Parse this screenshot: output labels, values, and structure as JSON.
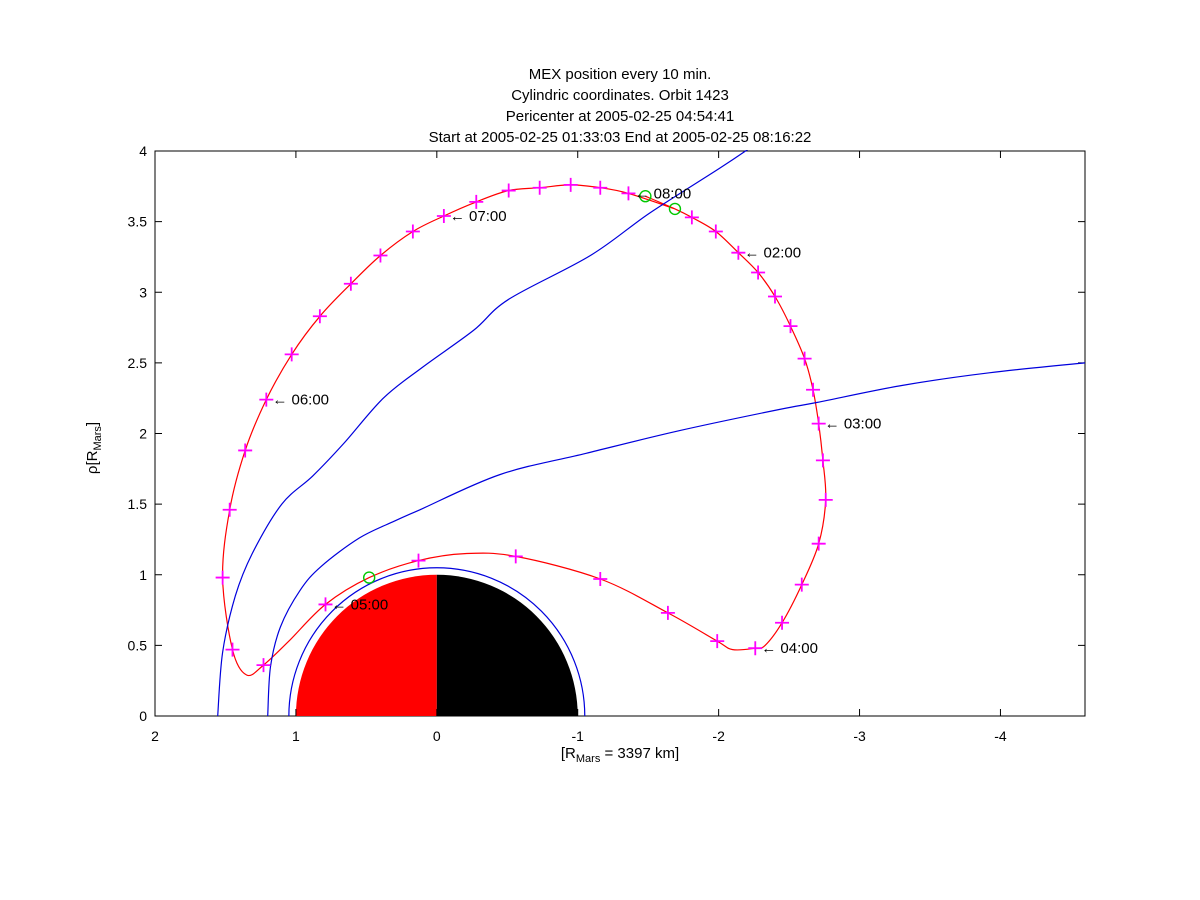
{
  "title": {
    "lines": [
      "MEX position every 10 min.",
      "Cylindric coordinates. Orbit 1423",
      "Pericenter at 2005-02-25 04:54:41",
      "Start at 2005-02-25 01:33:03 End at 2005-02-25 08:16:22"
    ]
  },
  "axes": {
    "xlabel": {
      "pre": "[R",
      "sub": "Mars",
      "post": " = 3397 km]"
    },
    "ylabel": {
      "pre": "ρ[R",
      "sub": "Mars",
      "post": "]"
    },
    "xlim": [
      2,
      -4.6
    ],
    "ylim": [
      0,
      4
    ],
    "xticks": [
      "2",
      "1",
      "0",
      "-1",
      "-2",
      "-3",
      "-4"
    ],
    "xtick_values": [
      2,
      1,
      0,
      -1,
      -2,
      -3,
      -4
    ],
    "yticks": [
      "0",
      "0.5",
      "1",
      "1.5",
      "2",
      "2.5",
      "3",
      "3.5",
      "4"
    ],
    "ytick_values": [
      0,
      0.5,
      1,
      1.5,
      2,
      2.5,
      3,
      3.5,
      4
    ]
  },
  "chart_data": {
    "type": "line",
    "xlabel": "[R_Mars = 3397 km]",
    "ylabel": "rho [R_Mars]",
    "xlim": [
      2,
      -4.6
    ],
    "ylim": [
      0,
      4
    ],
    "annotation_arrow": "←",
    "series": [
      {
        "name": "mex-orbit",
        "color": "#ff0000",
        "marker": "+",
        "marker_color": "#ff00ff",
        "points": [
          [
            -1.48,
            3.68,
            0
          ],
          [
            -1.69,
            3.59,
            0
          ],
          [
            -1.81,
            3.53,
            1
          ],
          [
            -1.98,
            3.43,
            1
          ],
          [
            -2.14,
            3.28,
            1
          ],
          [
            -2.28,
            3.14,
            1
          ],
          [
            -2.4,
            2.97,
            1
          ],
          [
            -2.51,
            2.76,
            1
          ],
          [
            -2.61,
            2.53,
            1
          ],
          [
            -2.67,
            2.31,
            1
          ],
          [
            -2.71,
            2.07,
            1
          ],
          [
            -2.74,
            1.81,
            1
          ],
          [
            -2.76,
            1.53,
            1
          ],
          [
            -2.71,
            1.22,
            1
          ],
          [
            -2.59,
            0.93,
            1
          ],
          [
            -2.45,
            0.66,
            1
          ],
          [
            -2.33,
            0.5,
            0
          ],
          [
            -2.26,
            0.48,
            1
          ],
          [
            -2.1,
            0.47,
            0
          ],
          [
            -1.99,
            0.53,
            1
          ],
          [
            -1.64,
            0.73,
            1
          ],
          [
            -1.16,
            0.97,
            1
          ],
          [
            -0.56,
            1.13,
            1
          ],
          [
            -0.2,
            1.15,
            0
          ],
          [
            0.13,
            1.1,
            1
          ],
          [
            0.48,
            0.98,
            0
          ],
          [
            0.79,
            0.79,
            1
          ],
          [
            1.05,
            0.53,
            0
          ],
          [
            1.23,
            0.36,
            1
          ],
          [
            1.35,
            0.29,
            0
          ],
          [
            1.45,
            0.47,
            1
          ],
          [
            1.52,
            0.98,
            1
          ],
          [
            1.47,
            1.46,
            1
          ],
          [
            1.36,
            1.88,
            1
          ],
          [
            1.21,
            2.24,
            1
          ],
          [
            1.03,
            2.56,
            1
          ],
          [
            0.83,
            2.83,
            1
          ],
          [
            0.61,
            3.06,
            1
          ],
          [
            0.4,
            3.26,
            1
          ],
          [
            0.17,
            3.43,
            1
          ],
          [
            -0.05,
            3.54,
            1
          ],
          [
            -0.28,
            3.64,
            1
          ],
          [
            -0.51,
            3.72,
            1
          ],
          [
            -0.73,
            3.74,
            1
          ],
          [
            -0.95,
            3.76,
            1
          ],
          [
            -1.16,
            3.74,
            1
          ],
          [
            -1.36,
            3.7,
            1
          ],
          [
            -1.69,
            3.59,
            0
          ]
        ]
      },
      {
        "name": "bow-shock-model",
        "color": "#0000dd",
        "points": [
          [
            1.555,
            0.0
          ],
          [
            1.52,
            0.45
          ],
          [
            1.43,
            0.85
          ],
          [
            1.31,
            1.15
          ],
          [
            1.1,
            1.5
          ],
          [
            0.88,
            1.7
          ],
          [
            0.66,
            1.93
          ],
          [
            0.38,
            2.25
          ],
          [
            0.1,
            2.47
          ],
          [
            -0.26,
            2.73
          ],
          [
            -0.51,
            2.95
          ],
          [
            -1.09,
            3.26
          ],
          [
            -1.51,
            3.56
          ],
          [
            -2.01,
            3.88
          ],
          [
            -2.22,
            4.02
          ]
        ]
      },
      {
        "name": "mpb-model",
        "color": "#0000dd",
        "points": [
          [
            1.2,
            0.0
          ],
          [
            1.18,
            0.35
          ],
          [
            1.11,
            0.63
          ],
          [
            0.97,
            0.89
          ],
          [
            0.82,
            1.06
          ],
          [
            0.55,
            1.26
          ],
          [
            0.3,
            1.38
          ],
          [
            0.12,
            1.46
          ],
          [
            -0.45,
            1.71
          ],
          [
            -1.06,
            1.86
          ],
          [
            -1.72,
            2.02
          ],
          [
            -2.43,
            2.17
          ],
          [
            -2.7,
            2.22
          ],
          [
            -3.3,
            2.34
          ],
          [
            -3.92,
            2.43
          ],
          [
            -4.6,
            2.5
          ]
        ]
      }
    ],
    "planet": {
      "name": "mars",
      "radius": 1.0,
      "day_side_color": "#ff0000",
      "night_side_color": "#000000",
      "outline_radius": 1.05,
      "outline_color": "#0000dd"
    },
    "events": [
      {
        "name": "orbit-start",
        "x": -1.48,
        "rho": 3.68
      },
      {
        "name": "orbit-end",
        "x": -1.69,
        "rho": 3.59
      },
      {
        "name": "pericenter",
        "x": 0.48,
        "rho": 0.98
      }
    ],
    "event_marker_color": "#00c800",
    "annotations": [
      {
        "text": "02:00",
        "x": -2.14,
        "rho": 3.28
      },
      {
        "text": "03:00",
        "x": -2.71,
        "rho": 2.07
      },
      {
        "text": "04:00",
        "x": -2.26,
        "rho": 0.48
      },
      {
        "text": "05:00",
        "x": 0.79,
        "rho": 0.79
      },
      {
        "text": "06:00",
        "x": 1.21,
        "rho": 2.24
      },
      {
        "text": "07:00",
        "x": -0.05,
        "rho": 3.54
      },
      {
        "text": "08:00",
        "x": -1.36,
        "rho": 3.7
      }
    ]
  },
  "colors": {
    "orbit_line": "#ff0000",
    "orbit_marker": "#ff00ff",
    "boundary_lines": "#0000dd",
    "event_marker": "#00c800",
    "frame": "#000000",
    "background": "#ffffff"
  }
}
